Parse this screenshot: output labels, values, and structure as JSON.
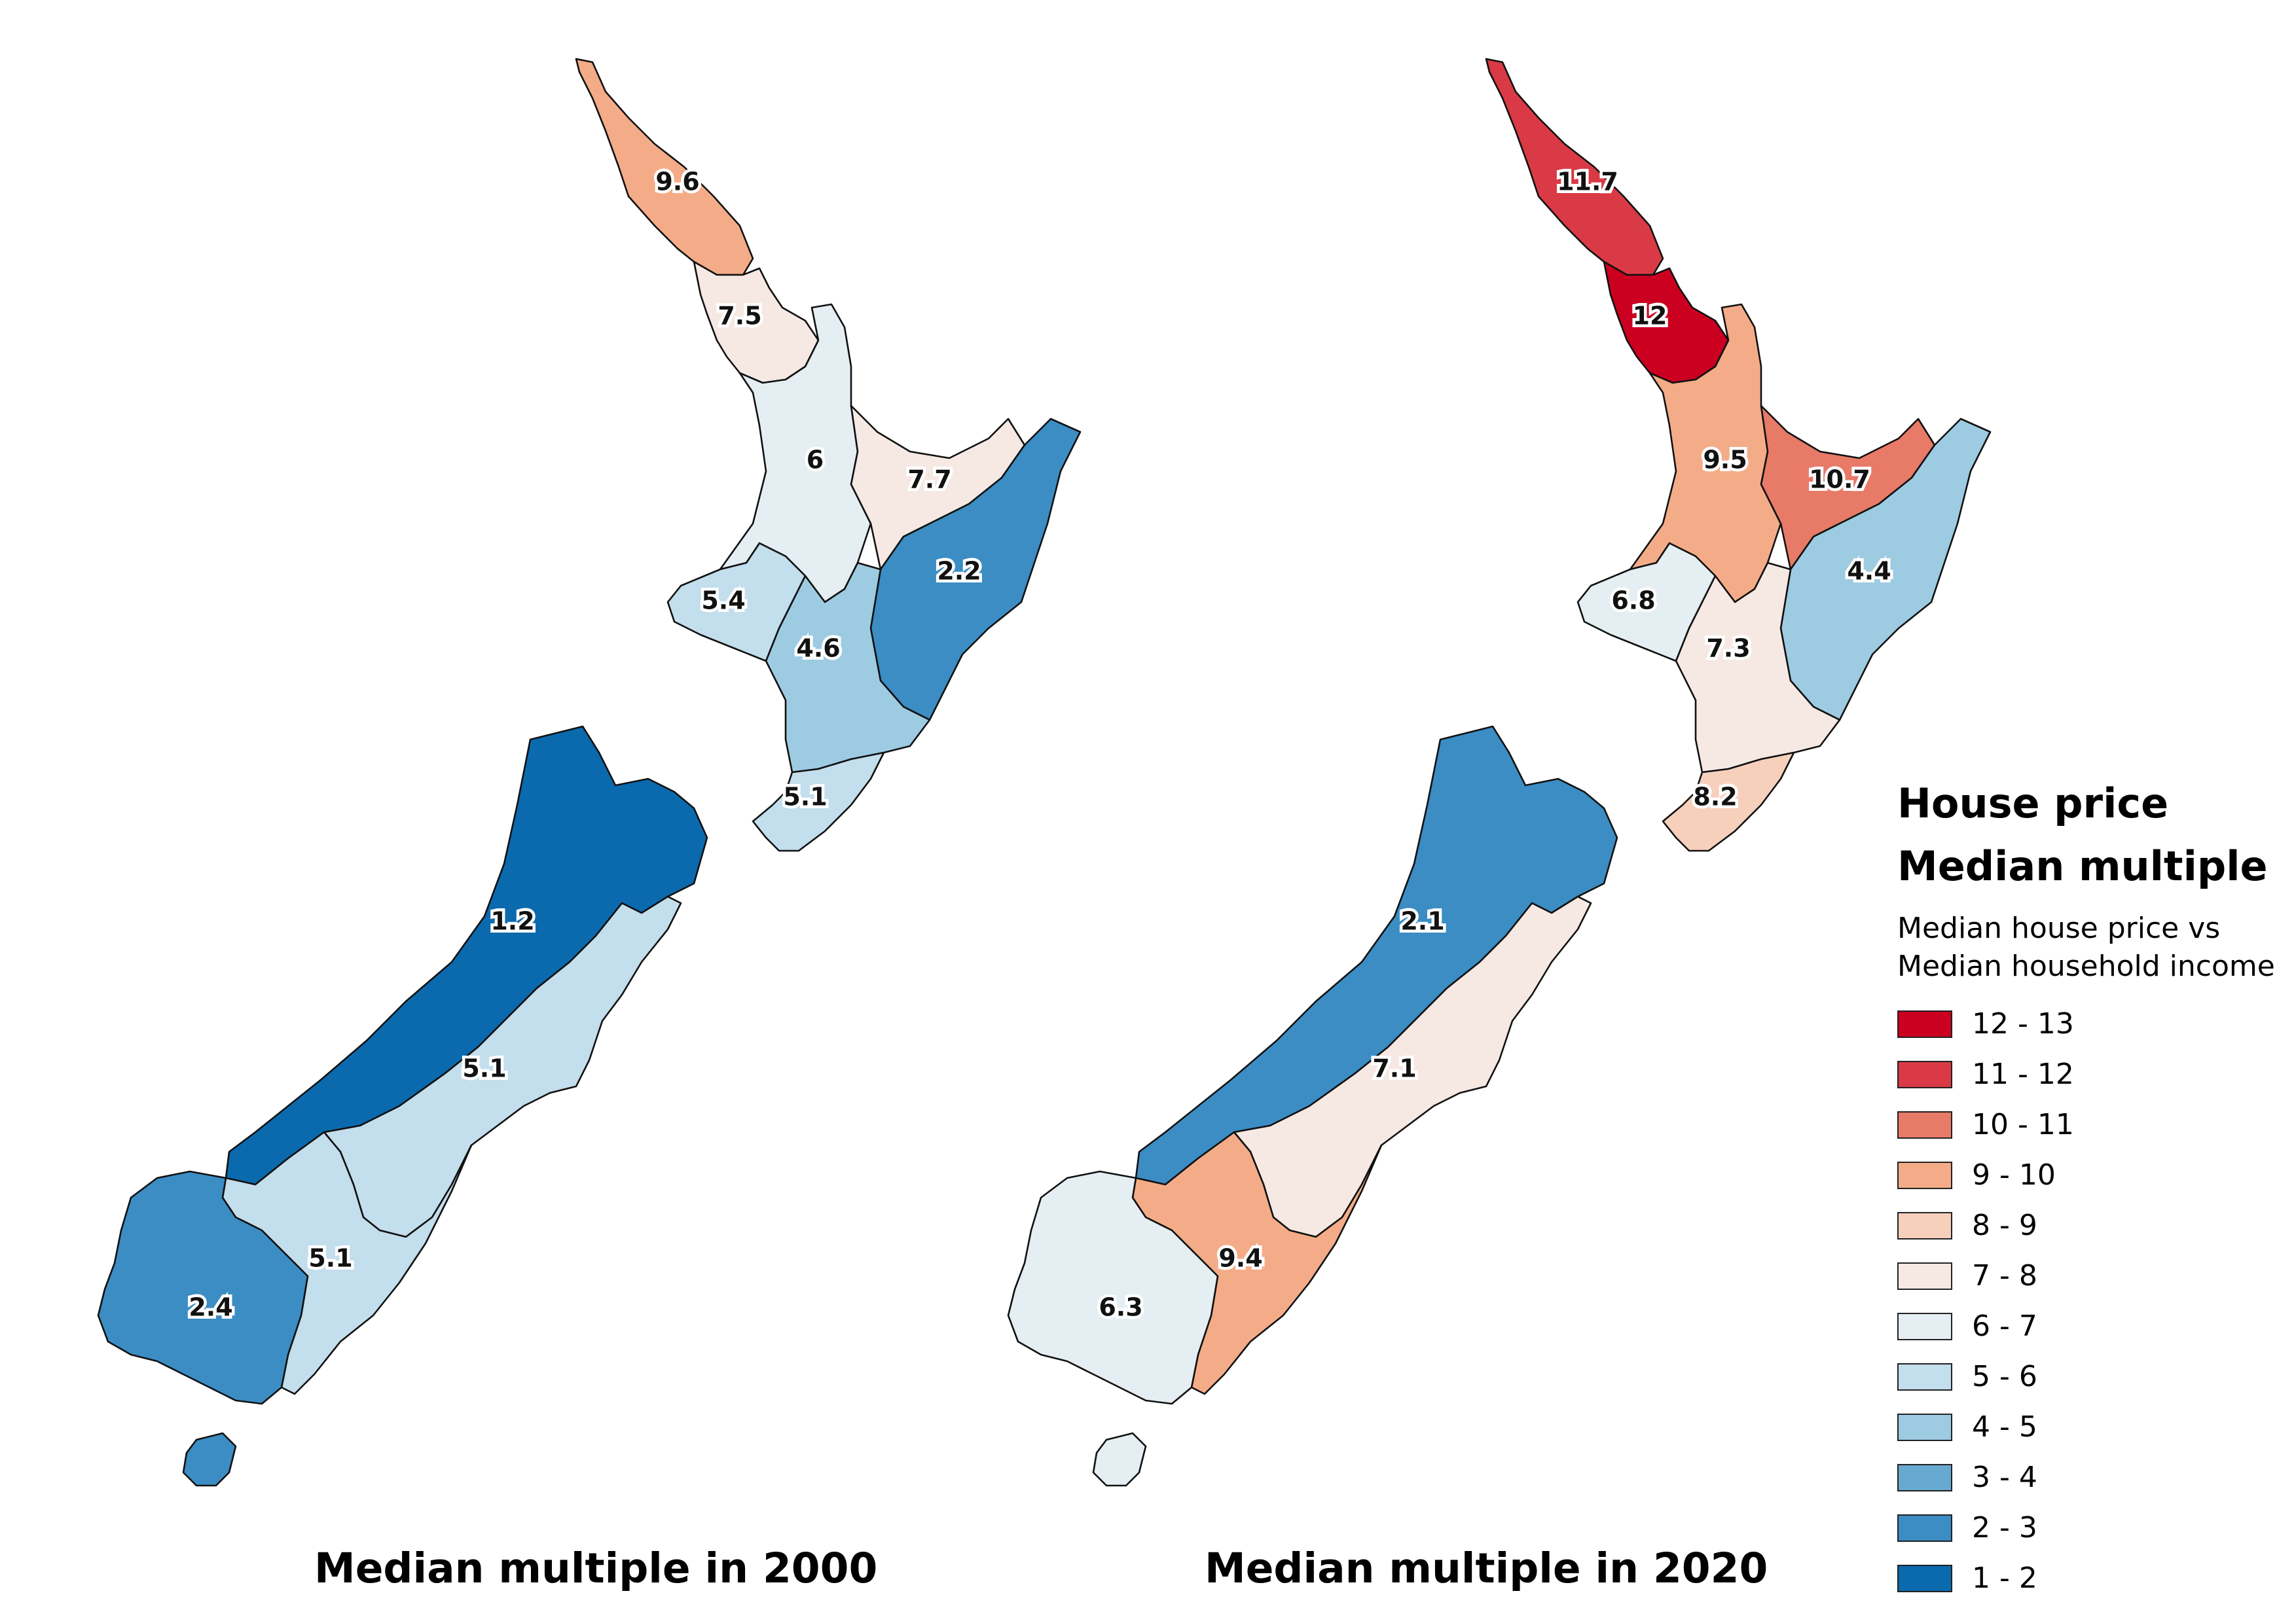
{
  "legend": {
    "title_line1": "House price",
    "title_line2": "Median multiple",
    "subtitle_line1": "Median house price vs",
    "subtitle_line2": "Median household income",
    "items": [
      {
        "label": "12 - 13",
        "color": "#cb0020"
      },
      {
        "label": "11 - 12",
        "color": "#d93a45"
      },
      {
        "label": "10 - 11",
        "color": "#e87a68"
      },
      {
        "label": "9 - 10",
        "color": "#f4ac88"
      },
      {
        "label": "8 - 9",
        "color": "#f7d0bc"
      },
      {
        "label": "7 - 8",
        "color": "#f6e9e4"
      },
      {
        "label": "6 - 7",
        "color": "#e4eef3"
      },
      {
        "label": "5 - 6",
        "color": "#c3deec"
      },
      {
        "label": "4 - 5",
        "color": "#9dcbe2"
      },
      {
        "label": "3 - 4",
        "color": "#67a9d1"
      },
      {
        "label": "2 - 3",
        "color": "#3b8dc4"
      },
      {
        "label": "1 - 2",
        "color": "#0b6aae"
      }
    ]
  },
  "maps": [
    {
      "year": "2000",
      "title": "Median multiple in 2000",
      "regions": [
        {
          "id": "northland",
          "value": 9.6,
          "label": "9.6"
        },
        {
          "id": "auckland",
          "value": 7.5,
          "label": "7.5"
        },
        {
          "id": "waikato",
          "value": 6,
          "label": "6"
        },
        {
          "id": "bay-of-plenty",
          "value": 7.7,
          "label": "7.7"
        },
        {
          "id": "gisborne-hawkes-bay",
          "value": 2.2,
          "label": "2.2"
        },
        {
          "id": "taranaki",
          "value": 5.4,
          "label": "5.4"
        },
        {
          "id": "manawatu-wanganui",
          "value": 4.6,
          "label": "4.6"
        },
        {
          "id": "wellington",
          "value": 5.1,
          "label": "5.1"
        },
        {
          "id": "west-coast-nelson",
          "value": 1.2,
          "label": "1.2"
        },
        {
          "id": "canterbury",
          "value": 5.1,
          "label": "5.1"
        },
        {
          "id": "otago",
          "value": 5.1,
          "label": "5.1"
        },
        {
          "id": "southland",
          "value": 2.4,
          "label": "2.4"
        }
      ]
    },
    {
      "year": "2020",
      "title": "Median multiple in 2020",
      "regions": [
        {
          "id": "northland",
          "value": 11.7,
          "label": "11.7"
        },
        {
          "id": "auckland",
          "value": 12,
          "label": "12"
        },
        {
          "id": "waikato",
          "value": 9.5,
          "label": "9.5"
        },
        {
          "id": "bay-of-plenty",
          "value": 10.7,
          "label": "10.7"
        },
        {
          "id": "gisborne-hawkes-bay",
          "value": 4.4,
          "label": "4.4"
        },
        {
          "id": "taranaki",
          "value": 6.8,
          "label": "6.8"
        },
        {
          "id": "manawatu-wanganui",
          "value": 7.3,
          "label": "7.3"
        },
        {
          "id": "wellington",
          "value": 8.2,
          "label": "8.2"
        },
        {
          "id": "west-coast-nelson",
          "value": 2.1,
          "label": "2.1"
        },
        {
          "id": "canterbury",
          "value": 7.1,
          "label": "7.1"
        },
        {
          "id": "otago",
          "value": 9.4,
          "label": "9.4"
        },
        {
          "id": "southland",
          "value": 6.3,
          "label": "6.3"
        }
      ]
    }
  ]
}
